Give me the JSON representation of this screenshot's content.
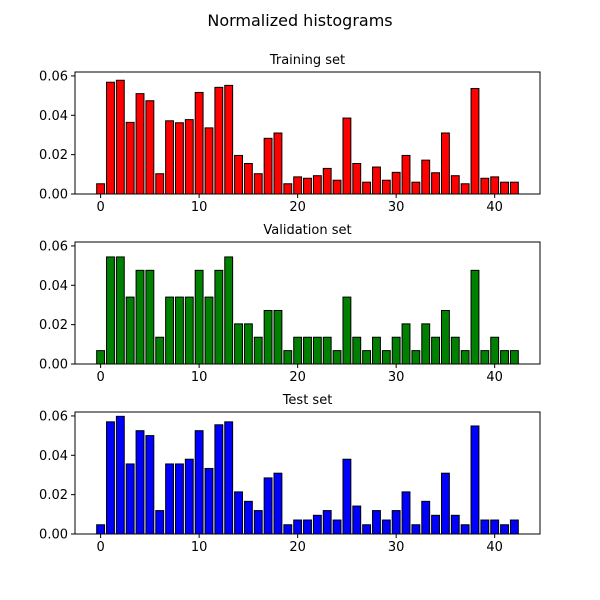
{
  "figure": {
    "suptitle": "Normalized histograms"
  },
  "chart_data": [
    {
      "type": "bar",
      "title": "Training set",
      "color": "#ff0000",
      "edgecolor": "#000000",
      "xlim": [
        -2.6,
        44.6
      ],
      "ylim": [
        0,
        0.062
      ],
      "xticks": [
        0,
        10,
        20,
        30,
        40
      ],
      "yticks": [
        0.0,
        0.02,
        0.04,
        0.06
      ],
      "x": [
        0,
        1,
        2,
        3,
        4,
        5,
        6,
        7,
        8,
        9,
        10,
        11,
        12,
        13,
        14,
        15,
        16,
        17,
        18,
        19,
        20,
        21,
        22,
        23,
        24,
        25,
        26,
        27,
        28,
        29,
        30,
        31,
        32,
        33,
        34,
        35,
        36,
        37,
        38,
        39,
        40,
        41,
        42
      ],
      "values": [
        0.0052,
        0.0568,
        0.0578,
        0.0364,
        0.051,
        0.0474,
        0.0103,
        0.0372,
        0.0362,
        0.0378,
        0.0516,
        0.0336,
        0.0542,
        0.0552,
        0.0196,
        0.0155,
        0.0103,
        0.0283,
        0.031,
        0.0052,
        0.0087,
        0.008,
        0.0093,
        0.013,
        0.007,
        0.0386,
        0.0155,
        0.006,
        0.0137,
        0.007,
        0.011,
        0.0196,
        0.006,
        0.0172,
        0.0108,
        0.031,
        0.0093,
        0.0052,
        0.0536,
        0.008,
        0.0087,
        0.006,
        0.006
      ]
    },
    {
      "type": "bar",
      "title": "Validation set",
      "color": "#008000",
      "edgecolor": "#000000",
      "xlim": [
        -2.6,
        44.6
      ],
      "ylim": [
        0,
        0.062
      ],
      "xticks": [
        0,
        10,
        20,
        30,
        40
      ],
      "yticks": [
        0.0,
        0.02,
        0.04,
        0.06
      ],
      "x": [
        0,
        1,
        2,
        3,
        4,
        5,
        6,
        7,
        8,
        9,
        10,
        11,
        12,
        13,
        14,
        15,
        16,
        17,
        18,
        19,
        20,
        21,
        22,
        23,
        24,
        25,
        26,
        27,
        28,
        29,
        30,
        31,
        32,
        33,
        34,
        35,
        36,
        37,
        38,
        39,
        40,
        41,
        42
      ],
      "values": [
        0.0068,
        0.0544,
        0.0544,
        0.034,
        0.0476,
        0.0476,
        0.0136,
        0.034,
        0.034,
        0.034,
        0.0476,
        0.034,
        0.0476,
        0.0544,
        0.0204,
        0.0204,
        0.0136,
        0.0272,
        0.0272,
        0.0068,
        0.0136,
        0.0136,
        0.0136,
        0.0136,
        0.0068,
        0.034,
        0.0136,
        0.0068,
        0.0136,
        0.0068,
        0.0136,
        0.0204,
        0.0068,
        0.0204,
        0.0136,
        0.0272,
        0.0136,
        0.0068,
        0.0476,
        0.0068,
        0.0136,
        0.0068,
        0.0068
      ]
    },
    {
      "type": "bar",
      "title": "Test set",
      "color": "#0000ff",
      "edgecolor": "#000000",
      "xlim": [
        -2.6,
        44.6
      ],
      "ylim": [
        0,
        0.062
      ],
      "xticks": [
        0,
        10,
        20,
        30,
        40
      ],
      "yticks": [
        0.0,
        0.02,
        0.04,
        0.06
      ],
      "x": [
        0,
        1,
        2,
        3,
        4,
        5,
        6,
        7,
        8,
        9,
        10,
        11,
        12,
        13,
        14,
        15,
        16,
        17,
        18,
        19,
        20,
        21,
        22,
        23,
        24,
        25,
        26,
        27,
        28,
        29,
        30,
        31,
        32,
        33,
        34,
        35,
        36,
        37,
        38,
        39,
        40,
        41,
        42
      ],
      "values": [
        0.0047,
        0.057,
        0.0598,
        0.0356,
        0.0525,
        0.05,
        0.0119,
        0.0356,
        0.0356,
        0.038,
        0.0525,
        0.0333,
        0.0555,
        0.057,
        0.0214,
        0.0166,
        0.0119,
        0.0285,
        0.0309,
        0.0047,
        0.0071,
        0.0071,
        0.0095,
        0.0119,
        0.0071,
        0.038,
        0.0142,
        0.0047,
        0.0119,
        0.0071,
        0.0119,
        0.0214,
        0.0047,
        0.0166,
        0.0095,
        0.0309,
        0.0095,
        0.0047,
        0.0549,
        0.0071,
        0.0071,
        0.0047,
        0.0071
      ]
    }
  ]
}
